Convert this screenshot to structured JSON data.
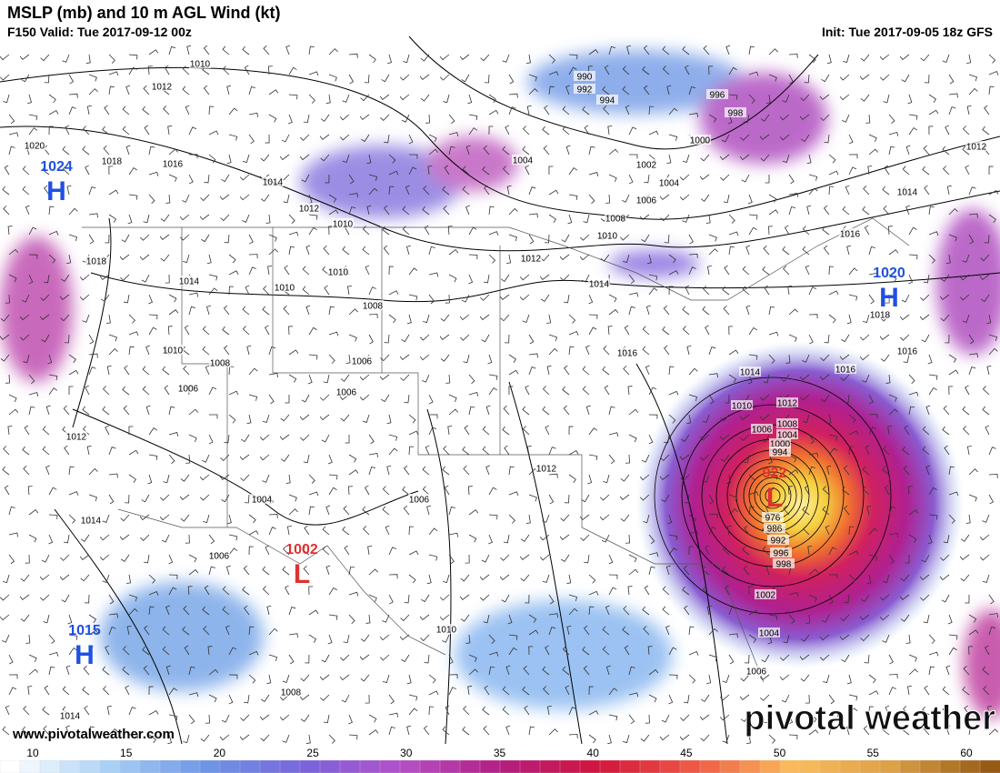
{
  "header": {
    "title": "MSLP (mb) and 10 m AGL Wind (kt)",
    "valid": "F150 Valid: Tue 2017-09-12 00z",
    "init": "Init: Tue 2017-09-05 18z GFS"
  },
  "centers": [
    {
      "symbol": "H",
      "pressure": 1024
    },
    {
      "symbol": "H",
      "pressure": 1020
    },
    {
      "symbol": "H",
      "pressure": 1015
    },
    {
      "symbol": "L",
      "pressure": 1002
    },
    {
      "symbol": "L",
      "pressure": 922
    }
  ],
  "isobar_labels": [
    1010,
    1012,
    1020,
    1018,
    1016,
    1014,
    1012,
    1010,
    1018,
    1014,
    1010,
    1010,
    1008,
    1006,
    1010,
    1008,
    1006,
    1006,
    1012,
    1004,
    1006,
    1014,
    1006,
    1012,
    1008,
    1010,
    1014,
    990,
    992,
    994,
    996,
    998,
    1000,
    1004,
    1002,
    1004,
    1006,
    1008,
    1010,
    1012,
    1014,
    1016,
    1014,
    1016,
    1012,
    1014,
    1016,
    1018,
    1016,
    1010,
    1012,
    1008,
    1006,
    1004,
    1000,
    994,
    976,
    986,
    992,
    996,
    998,
    1002,
    1004,
    1006
  ],
  "colorbar": {
    "ticks": [
      10,
      15,
      20,
      25,
      30,
      35,
      40,
      45,
      50,
      55,
      60
    ]
  },
  "website": "www.pivotalweather.com",
  "watermark": "pivotal weather"
}
